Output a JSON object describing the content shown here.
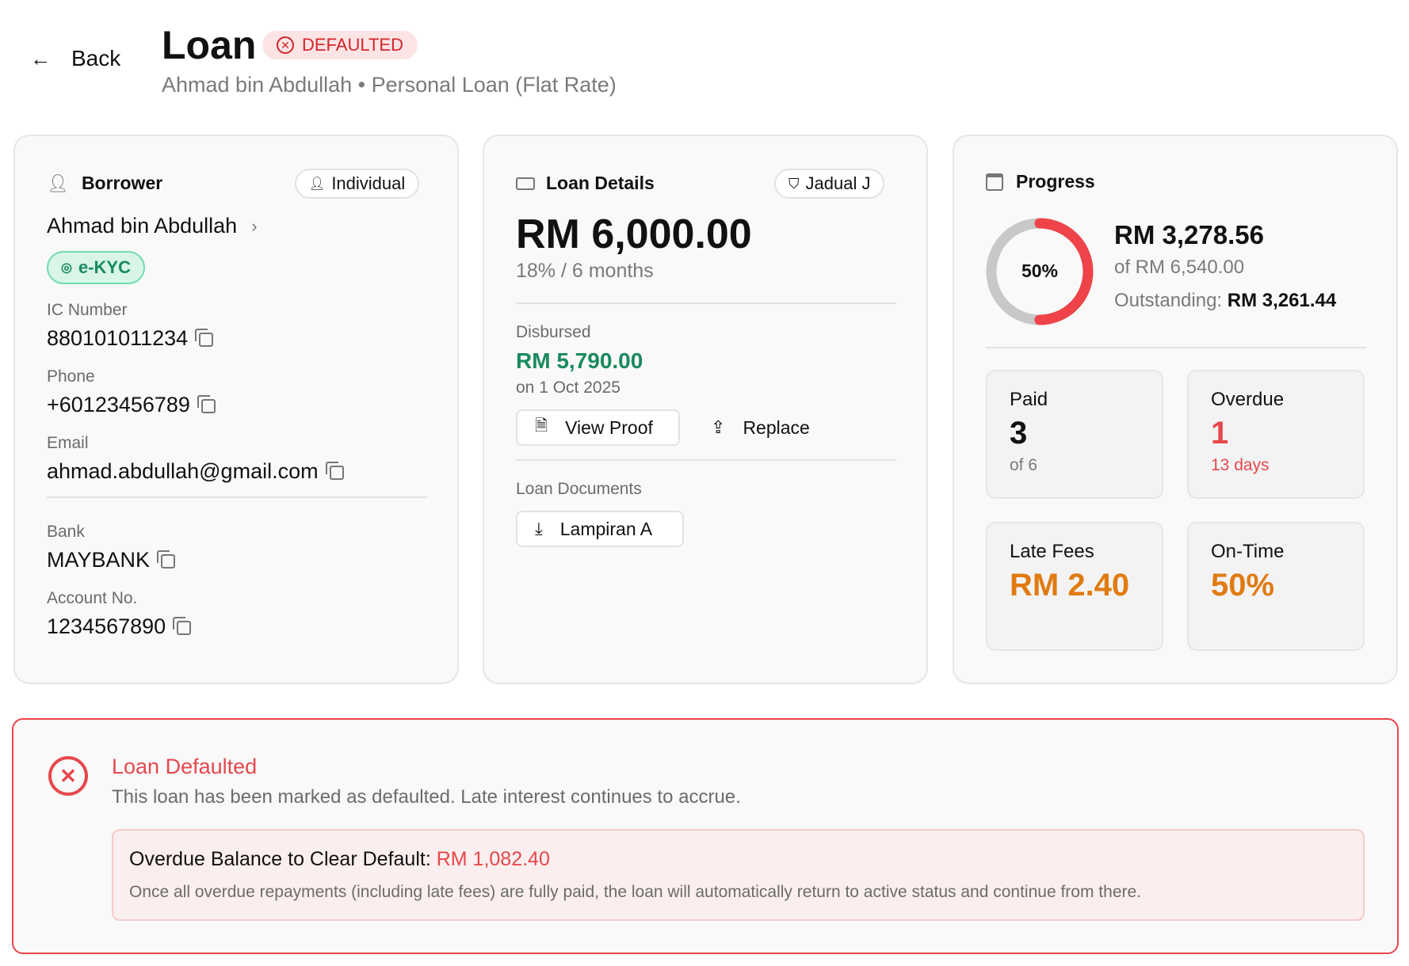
{
  "header": {
    "back_label": "Back",
    "title": "Loan",
    "status": "DEFAULTED",
    "subtitle": "Ahmad bin Abdullah • Personal Loan (Flat Rate)"
  },
  "borrower": {
    "title": "Borrower",
    "type_badge": "Individual",
    "name": "Ahmad bin Abdullah",
    "kyc_badge": "e-KYC",
    "fields": [
      {
        "label": "IC Number",
        "value": "880101011234"
      },
      {
        "label": "Phone",
        "value": "+60123456789"
      },
      {
        "label": "Email",
        "value": "ahmad.abdullah@gmail.com"
      },
      {
        "label": "Bank",
        "value": "MAYBANK"
      },
      {
        "label": "Account No.",
        "value": "1234567890"
      }
    ]
  },
  "loan": {
    "title": "Loan Details",
    "schedule_badge": "Jadual J",
    "amount": "RM 6,000.00",
    "terms": "18% / 6 months",
    "disbursed_label": "Disbursed",
    "disbursed_amount": "RM 5,790.00",
    "disbursed_date": "on 1 Oct 2025",
    "view_proof": "View Proof",
    "replace": "Replace",
    "documents_label": "Loan Documents",
    "document": "Lampiran A"
  },
  "progress": {
    "title": "Progress",
    "percent": 50,
    "percent_label": "50%",
    "paid_amount": "RM 3,278.56",
    "total": "of RM 6,540.00",
    "outstanding_label": "Outstanding:",
    "outstanding": "RM 3,261.44",
    "stats": [
      {
        "label": "Paid",
        "value": "3",
        "sub": "of 6"
      },
      {
        "label": "Overdue",
        "value": "1",
        "sub": "13 days"
      },
      {
        "label": "Late Fees",
        "value": "RM 2.40"
      },
      {
        "label": "On-Time",
        "value": "50%"
      }
    ]
  },
  "alert": {
    "title": "Loan Defaulted",
    "message": "This loan has been marked as defaulted. Late interest continues to accrue.",
    "balance_label": "Overdue Balance to Clear Default:",
    "balance_value": "RM 1,082.40",
    "note": "Once all overdue repayments (including late fees) are fully paid, the loan will automatically return to active status and continue from there."
  },
  "colors": {
    "danger": "#e5484d",
    "success": "#1a8a5e",
    "warning": "#e07b12"
  }
}
